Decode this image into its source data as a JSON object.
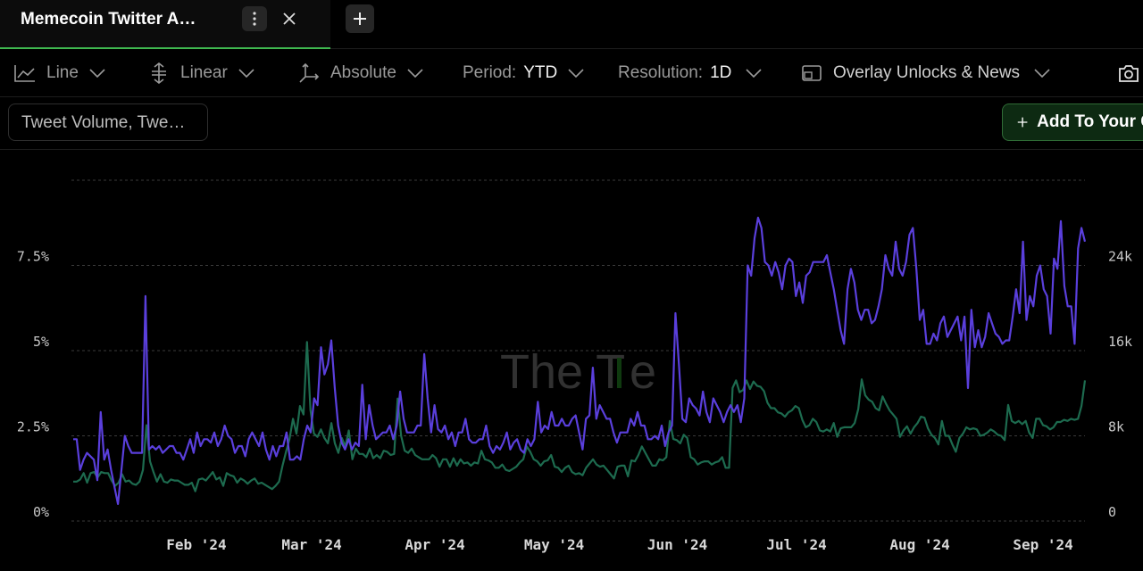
{
  "tab": {
    "title": "Memecoin Twitter A…"
  },
  "toolbar": {
    "chart_type": "Line",
    "scale": "Linear",
    "mode": "Absolute",
    "period_label": "Period:",
    "period_value": "YTD",
    "resolution_label": "Resolution:",
    "resolution_value": "1D",
    "overlay_label": "Overlay Unlocks & News"
  },
  "metrics_button": "Tweet Volume, Twe…",
  "add_button": "Add To Your C",
  "watermark": {
    "text_a": "The T",
    "text_b": "e"
  },
  "colors": {
    "purple": "#5a3fdc",
    "green": "#1d6b4f",
    "accent": "#3fb950"
  },
  "chart_data": {
    "type": "line",
    "x_start": "2024-01-01",
    "x_end": "2024-09-12",
    "xlabel": "",
    "ylabel": "",
    "left_axis": {
      "ticks": [
        "0%",
        "2.5%",
        "5%",
        "7.5%"
      ],
      "range": [
        0,
        10
      ]
    },
    "right_axis": {
      "ticks": [
        "0",
        "8k",
        "16k",
        "24k"
      ],
      "range": [
        0,
        32000
      ]
    },
    "x_ticks": [
      "Feb '24",
      "Mar '24",
      "Apr '24",
      "May '24",
      "Jun '24",
      "Jul '24",
      "Aug '24",
      "Sep '24"
    ],
    "grid": true,
    "series": [
      {
        "color": "#5a3fdc",
        "axis": "left",
        "values": [
          2.4,
          2.4,
          1.5,
          1.8,
          2.0,
          1.9,
          1.8,
          1.2,
          3.2,
          1.8,
          2.1,
          1.5,
          1.0,
          0.5,
          1.5,
          2.5,
          2.2,
          2.0,
          2.0,
          2.0,
          2.0,
          6.6,
          2.1,
          2.2,
          2.1,
          2.2,
          2.0,
          2.1,
          2.2,
          2.2,
          2.0,
          2.0,
          1.8,
          2.1,
          2.4,
          2.0,
          2.6,
          2.2,
          2.4,
          2.4,
          2.3,
          2.6,
          2.2,
          2.4,
          2.8,
          2.5,
          2.4,
          2.0,
          2.2,
          2.2,
          1.9,
          2.4,
          2.6,
          2.4,
          2.2,
          2.6,
          2.1,
          1.8,
          2.2,
          1.9,
          2.2,
          2.2,
          2.6,
          1.8,
          1.8,
          1.9,
          1.8,
          2.4,
          2.8,
          2.6,
          3.6,
          3.4,
          5.1,
          4.3,
          4.6,
          5.3,
          3.9,
          2.8,
          2.3,
          2.1,
          2.4,
          2.1,
          2.3,
          2.2,
          4.0,
          2.4,
          3.4,
          2.8,
          2.4,
          2.5,
          2.6,
          2.6,
          2.8,
          2.4,
          2.8,
          3.8,
          3.0,
          2.6,
          2.6,
          2.6,
          2.8,
          2.8,
          4.9,
          3.6,
          2.6,
          3.4,
          2.7,
          2.6,
          2.8,
          2.4,
          2.6,
          2.2,
          2.6,
          2.6,
          3.0,
          2.4,
          2.3,
          2.3,
          2.4,
          2.4,
          2.8,
          2.2,
          2.0,
          2.2,
          2.1,
          2.3,
          2.6,
          2.1,
          2.3,
          2.4,
          2.1,
          2.0,
          2.4,
          2.2,
          2.4,
          3.5,
          2.6,
          2.8,
          2.7,
          3.2,
          2.8,
          2.8,
          3.0,
          2.8,
          2.8,
          3.0,
          3.1,
          2.6,
          2.1,
          3.0,
          3.1,
          4.5,
          3.0,
          3.4,
          3.2,
          3.0,
          3.0,
          2.6,
          2.3,
          2.6,
          2.6,
          2.6,
          3.0,
          2.8,
          3.2,
          2.8,
          2.8,
          2.4,
          2.4,
          2.5,
          2.4,
          2.8,
          2.2,
          2.6,
          2.8,
          6.1,
          4.6,
          3.0,
          2.9,
          3.6,
          3.4,
          3.3,
          3.1,
          3.8,
          3.2,
          2.9,
          3.6,
          3.4,
          3.2,
          2.9,
          3.2,
          3.4,
          3.2,
          3.4,
          2.9,
          3.6,
          7.5,
          7.2,
          8.3,
          8.9,
          8.6,
          7.6,
          7.5,
          7.2,
          7.6,
          7.3,
          6.8,
          7.5,
          7.7,
          7.6,
          6.6,
          7.0,
          6.4,
          7.2,
          7.3,
          7.6,
          7.6,
          7.6,
          7.6,
          7.8,
          7.3,
          6.8,
          6.2,
          5.6,
          5.2,
          6.8,
          7.4,
          7.0,
          6.2,
          5.9,
          6.2,
          6.2,
          5.8,
          5.9,
          6.3,
          6.8,
          7.8,
          7.4,
          7.2,
          8.2,
          7.4,
          7.2,
          7.6,
          8.4,
          8.6,
          7.4,
          5.9,
          6.2,
          5.2,
          5.2,
          5.5,
          5.3,
          5.8,
          6.0,
          5.4,
          5.6,
          5.8,
          6.0,
          5.3,
          6.0,
          3.9,
          6.2,
          5.1,
          5.6,
          5.1,
          5.4,
          6.1,
          5.8,
          5.5,
          5.4,
          5.2,
          5.3,
          5.3,
          6.0,
          6.8,
          6.1,
          8.2,
          5.9,
          6.6,
          6.3,
          7.2,
          7.5,
          6.8,
          6.6,
          5.5,
          7.7,
          7.4,
          8.8,
          6.9,
          6.3,
          6.3,
          5.2,
          8.0,
          8.6,
          8.2
        ]
      },
      {
        "color": "#1d6b4f",
        "axis": "right",
        "values": [
          3700,
          3700,
          3900,
          4500,
          3600,
          4500,
          4600,
          4100,
          4600,
          4500,
          4500,
          3800,
          3300,
          3600,
          4400,
          3700,
          3800,
          3500,
          3400,
          3700,
          4800,
          9000,
          5600,
          4600,
          3700,
          4400,
          3700,
          3600,
          3900,
          3800,
          3800,
          3600,
          3400,
          3400,
          3600,
          2800,
          3900,
          4000,
          3800,
          4200,
          4600,
          3900,
          4100,
          3300,
          4500,
          4300,
          4200,
          3600,
          4000,
          3800,
          3500,
          3800,
          4000,
          3500,
          3600,
          3400,
          3200,
          3000,
          3300,
          3700,
          5200,
          6500,
          7700,
          9600,
          8200,
          10800,
          10000,
          16800,
          10400,
          8200,
          7900,
          8600,
          7800,
          7300,
          9200,
          7300,
          6400,
          7800,
          7000,
          8500,
          5800,
          6800,
          6300,
          6300,
          6000,
          6800,
          5900,
          6200,
          5900,
          6600,
          6500,
          6200,
          6300,
          11500,
          8000,
          6600,
          6400,
          6800,
          6200,
          6000,
          5800,
          5800,
          5800,
          6200,
          5900,
          5100,
          5800,
          5800,
          5100,
          5900,
          5200,
          5800,
          5400,
          5500,
          5200,
          5500,
          5400,
          6600,
          5800,
          5700,
          5500,
          5000,
          5000,
          5300,
          4800,
          4700,
          4900,
          5100,
          5500,
          5800,
          7000,
          6500,
          5800,
          5600,
          5200,
          5600,
          5700,
          6200,
          5100,
          5000,
          4600,
          5000,
          5200,
          4600,
          4400,
          4500,
          4300,
          5000,
          5400,
          5800,
          5300,
          5100,
          5200,
          4800,
          4400,
          4000,
          5100,
          5200,
          5200,
          4200,
          5700,
          5600,
          6200,
          7000,
          6400,
          5800,
          5200,
          5200,
          5800,
          5700,
          6000,
          9400,
          7700,
          7600,
          7300,
          8100,
          7800,
          6000,
          5800,
          5300,
          5500,
          5600,
          5600,
          5300,
          5500,
          5600,
          6000,
          5000,
          5000,
          12500,
          13200,
          12100,
          12300,
          13200,
          12400,
          13100,
          12700,
          12600,
          12200,
          11100,
          10600,
          10600,
          10200,
          10100,
          9800,
          10200,
          10400,
          10800,
          10600,
          9500,
          8800,
          9000,
          9600,
          9300,
          8500,
          8400,
          8600,
          8400,
          9200,
          7900,
          8700,
          8800,
          8800,
          8800,
          9200,
          10500,
          13300,
          11800,
          11400,
          11200,
          10600,
          10400,
          11700,
          11000,
          10400,
          10000,
          9600,
          7900,
          8500,
          8900,
          8200,
          8800,
          9200,
          9800,
          9700,
          8700,
          8100,
          7800,
          7200,
          9400,
          8000,
          8000,
          7200,
          6500,
          7800,
          8200,
          8800,
          8600,
          8700,
          8600,
          8000,
          8100,
          8300,
          8600,
          8400,
          8100,
          8000,
          7600,
          10900,
          9400,
          9200,
          9400,
          9100,
          9400,
          8300,
          7800,
          9600,
          9600,
          9000,
          8900,
          8600,
          8800,
          9300,
          9300,
          9500,
          9400,
          9600,
          9500,
          9600,
          10800,
          13200
        ]
      }
    ]
  }
}
